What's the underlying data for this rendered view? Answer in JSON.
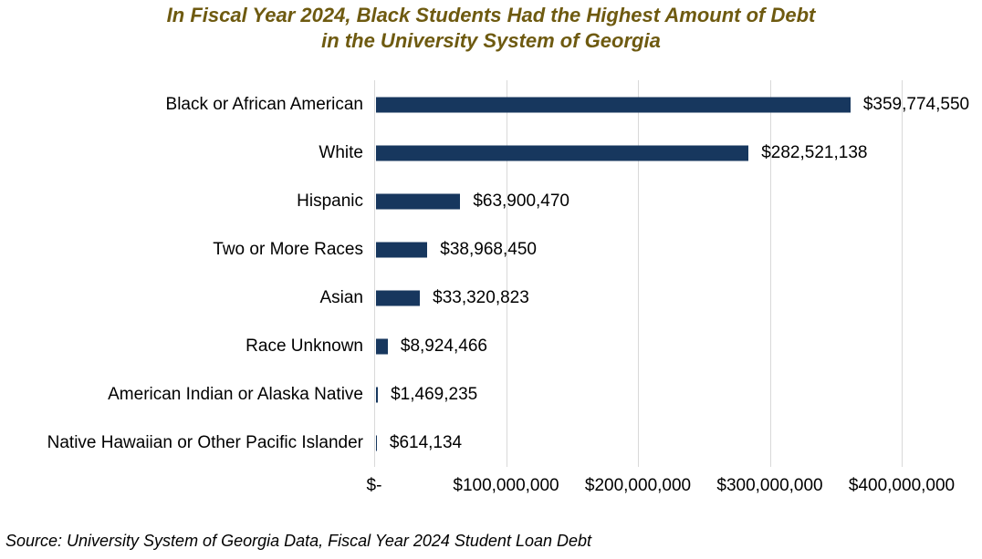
{
  "title": {
    "line1": "In Fiscal Year 2024, Black Students Had the Highest Amount of Debt",
    "line2": "in the University System of Georgia"
  },
  "source": "Source: University System of Georgia Data, Fiscal Year 2024 Student Loan Debt",
  "colors": {
    "bar": "#17375e",
    "title": "#6e5a10",
    "gridline": "#d9d9d9",
    "text": "#000000",
    "background": "#ffffff"
  },
  "chart_data": {
    "type": "bar",
    "orientation": "horizontal",
    "title": "In Fiscal Year 2024, Black Students Had the Highest Amount of Debt in the University System of Georgia",
    "categories": [
      "Black or African American",
      "White",
      "Hispanic",
      "Two or More Races",
      "Asian",
      "Race Unknown",
      "American Indian or Alaska Native",
      "Native Hawaiian or Other Pacific Islander"
    ],
    "values": [
      359774550,
      282521138,
      63900470,
      38968450,
      33320823,
      8924466,
      1469235,
      614134
    ],
    "value_labels": [
      "$359,774,550",
      "$282,521,138",
      "$63,900,470",
      "$38,968,450",
      "$33,320,823",
      "$8,924,466",
      "$1,469,235",
      "$614,134"
    ],
    "x_axis_ticks": [
      "$-",
      "$100,000,000",
      "$200,000,000",
      "$300,000,000",
      "$400,000,000"
    ],
    "xlim": [
      0,
      400000000
    ],
    "xlabel": "",
    "ylabel": "",
    "grid": "vertical",
    "legend": "none"
  }
}
